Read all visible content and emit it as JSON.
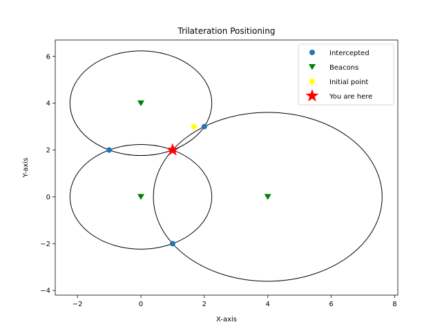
{
  "chart_data": {
    "type": "scatter",
    "title": "Trilateration Positioning",
    "xlabel": "X-axis",
    "ylabel": "Y-axis",
    "xlim": [
      -2.7,
      8.1
    ],
    "ylim": [
      -4.2,
      6.7
    ],
    "xticks": [
      -2,
      0,
      2,
      4,
      6,
      8
    ],
    "yticks": [
      -4,
      -2,
      0,
      2,
      4,
      6
    ],
    "grid": false,
    "legend_position": "top-right",
    "circles": [
      {
        "cx": 0,
        "cy": 4,
        "r": 2.236
      },
      {
        "cx": 0,
        "cy": 0,
        "r": 2.236
      },
      {
        "cx": 4,
        "cy": 0,
        "r": 3.606
      }
    ],
    "series": [
      {
        "name": "Intercepted",
        "marker": "circle",
        "color": "#1f77b4",
        "points": [
          [
            -1,
            2
          ],
          [
            2,
            3
          ],
          [
            1,
            -2
          ]
        ]
      },
      {
        "name": "Beacons",
        "marker": "triangle-down",
        "color": "#008000",
        "points": [
          [
            0,
            4
          ],
          [
            0,
            0
          ],
          [
            4,
            0
          ]
        ]
      },
      {
        "name": "Initial point",
        "marker": "circle",
        "color": "#ffff00",
        "points": [
          [
            1.67,
            3
          ]
        ]
      },
      {
        "name": "You are here",
        "marker": "star",
        "color": "#ff0000",
        "points": [
          [
            1,
            2
          ]
        ]
      }
    ]
  }
}
